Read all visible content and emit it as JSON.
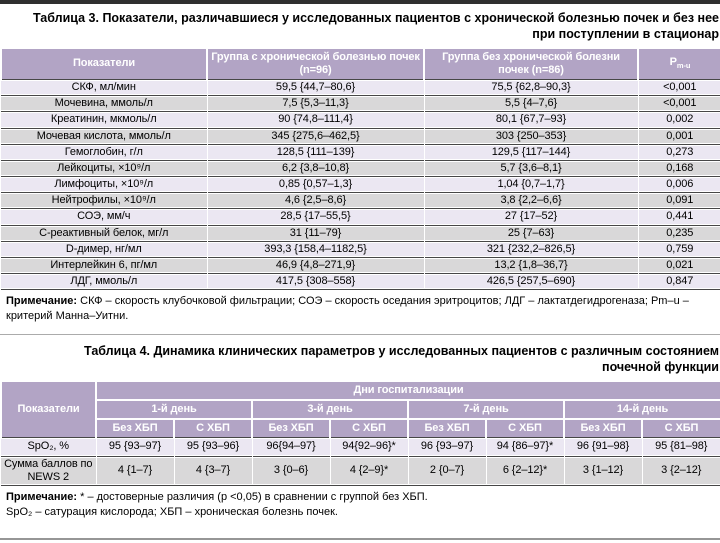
{
  "colors": {
    "header-bg": "#b2a4c5",
    "row-light": "#ebe7f2",
    "row-gray": "#d9d8d9",
    "line-dark": "#474747",
    "rule-dark": "#2f2f2f",
    "rule-mid": "#ababab",
    "rule-bottom": "#969696"
  },
  "table3": {
    "title": "Таблица 3. Показатели, различавшиеся у исследованных пациентов с хронической болезнью почек и без нее при поступлении в стационар",
    "header": {
      "col1": "Показатели",
      "col2": "Группа с хронической болезнью почек (n=96)",
      "col3": "Группа без хронической болезни почек (n=86)",
      "p_main": "P",
      "p_sub": "m-u"
    },
    "rows": [
      {
        "label": "СКФ, мл/мин",
        "ckd": "59,5 {44,7–80,6}",
        "no_ckd": "75,5 {62,8–90,3}",
        "p": "<0,001"
      },
      {
        "label": "Мочевина, ммоль/л",
        "ckd": "7,5 {5,3–11,3}",
        "no_ckd": "5,5 {4–7,6}",
        "p": "<0,001"
      },
      {
        "label": "Креатинин, мкмоль/л",
        "ckd": "90 {74,8–111,4}",
        "no_ckd": "80,1 {67,7–93}",
        "p": "0,002"
      },
      {
        "label": "Мочевая кислота, ммоль/л",
        "ckd": "345 {275,6–462,5}",
        "no_ckd": "303 {250–353}",
        "p": "0,001"
      },
      {
        "label": "Гемоглобин, г/л",
        "ckd": "128,5 {111–139}",
        "no_ckd": "129,5 {117–144}",
        "p": "0,273"
      },
      {
        "label": "Лейкоциты, ×10⁹/л",
        "ckd": "6,2 {3,8–10,8}",
        "no_ckd": "5,7 {3,6–8,1}",
        "p": "0,168"
      },
      {
        "label": "Лимфоциты, ×10⁹/л",
        "ckd": "0,85 {0,57–1,3}",
        "no_ckd": "1,04 {0,7–1,7}",
        "p": "0,006"
      },
      {
        "label": "Нейтрофилы, ×10⁹/л",
        "ckd": "4,6 {2,5–8,6}",
        "no_ckd": "3,8 {2,2–6,6}",
        "p": "0,091"
      },
      {
        "label": "СОЭ, мм/ч",
        "ckd": "28,5 {17–55,5}",
        "no_ckd": "27 {17–52}",
        "p": "0,441"
      },
      {
        "label": "С-реактивный белок, мг/л",
        "ckd": "31 {11–79}",
        "no_ckd": "25 {7–63}",
        "p": "0,235"
      },
      {
        "label": "D-димер, нг/мл",
        "ckd": "393,3 {158,4–1182,5}",
        "no_ckd": "321 {232,2–826,5}",
        "p": "0,759"
      },
      {
        "label": "Интерлейкин 6, пг/мл",
        "ckd": "46,9 {4,8–271,9}",
        "no_ckd": "13,2 {1,8–36,7}",
        "p": "0,021"
      },
      {
        "label": "ЛДГ, ммоль/л",
        "ckd": "417,5 {308–558}",
        "no_ckd": "426,5 {257,5–690}",
        "p": "0,847"
      }
    ],
    "note_prefix": "Примечание:",
    "note_text": "СКФ – скорость клубочковой фильтрации; СОЭ – скорость оседания эритроцитов; ЛДГ – лактатдегидрогеназа; Pm–u – критерий Манна–Уитни."
  },
  "table4": {
    "title": "Таблица 4. Динамика клинических параметров у исследованных пациентов с различным состоянием почечной функции",
    "header": {
      "col1": "Показатели",
      "span": "Дни госпитализации",
      "days": [
        "1-й день",
        "3-й день",
        "7-й день",
        "14-й день"
      ],
      "sub": [
        "Без ХБП",
        "С ХБП"
      ]
    },
    "rows": [
      {
        "label": "SpO₂, %",
        "values": [
          "95 {93–97}",
          "95 {93–96}",
          "96{94–97}",
          "94{92–96}*",
          "96 {93–97}",
          "94 {86–97}*",
          "96 {91–98}",
          "95 {81–98}"
        ]
      },
      {
        "label": "Сумма баллов по NEWS 2",
        "values": [
          "4 {1–7}",
          "4 {3–7}",
          "3 {0–6}",
          "4 {2–9}*",
          "2 {0–7}",
          "6 {2–12}*",
          "3 {1–12}",
          "3 {2–12}"
        ]
      }
    ],
    "note_prefix": "Примечание:",
    "note1": "* – достоверные различия (p <0,05) в сравнении с группой без ХБП.",
    "note2": "SpO₂ – сатурация кислорода; ХБП – хроническая болезнь почек."
  }
}
